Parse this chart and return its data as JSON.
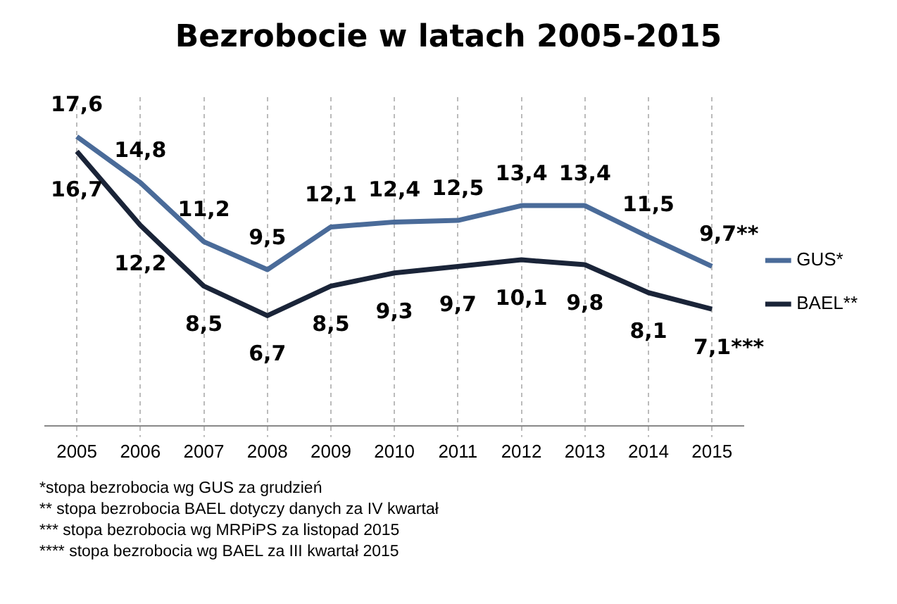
{
  "chart_data": {
    "type": "line",
    "title": "Bezrobocie w latach 2005-2015",
    "categories": [
      "2005",
      "2006",
      "2007",
      "2008",
      "2009",
      "2010",
      "2011",
      "2012",
      "2013",
      "2014",
      "2015"
    ],
    "series": [
      {
        "name": "GUS*",
        "color": "#4a6b99",
        "values": [
          17.6,
          14.8,
          11.2,
          9.5,
          12.1,
          12.4,
          12.5,
          13.4,
          13.4,
          11.5,
          9.7
        ],
        "value_labels": [
          "17,6",
          "14,8",
          "11,2",
          "9,5",
          "12,1",
          "12,4",
          "12,5",
          "13,4",
          "13,4",
          "11,5",
          "9,7**"
        ]
      },
      {
        "name": "BAEL**",
        "color": "#1a2438",
        "values": [
          16.7,
          12.2,
          8.5,
          6.7,
          8.5,
          9.3,
          9.7,
          10.1,
          9.8,
          8.1,
          7.1
        ],
        "value_labels": [
          "16,7",
          "12,2",
          "8,5",
          "6,7",
          "8,5",
          "9,3",
          "9,7",
          "10,1",
          "9,8",
          "8,1",
          "7,1***"
        ]
      }
    ],
    "grid": "x",
    "legend": "right",
    "tick_labels": "x",
    "marker": "none",
    "line_style": "solid",
    "annotations": [
      "*stopa bezrobocia wg GUS za grudzień",
      "** stopa bezrobocia BAEL dotyczy danych za IV kwartał",
      "*** stopa bezrobocia wg MRPiPS za listopad  2015",
      "**** stopa bezrobocia wg BAEL za III kwartał 2015"
    ]
  }
}
